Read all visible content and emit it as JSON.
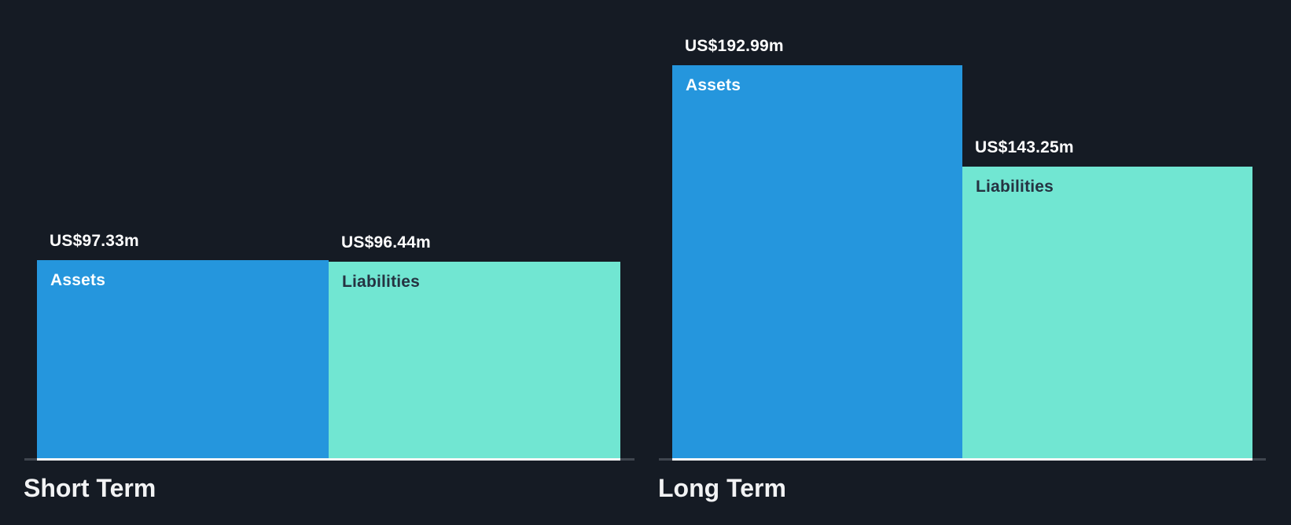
{
  "colors": {
    "background": "#151b24",
    "assets_bar": "#2596dd",
    "liabilities_bar": "#71e6d2",
    "axis_line": "#40464f",
    "bars_underline": "#f7f8f8",
    "value_text": "#ffffff",
    "assets_label_text": "#ffffff",
    "liabilities_label_text": "#253241",
    "group_label_text": "#f2f3f4"
  },
  "chart_data": {
    "type": "bar",
    "title": "",
    "unit": "US$ millions",
    "ylim": [
      0,
      200
    ],
    "grid": false,
    "legend": false,
    "groups": [
      {
        "label": "Short Term",
        "bars": [
          {
            "name": "Assets",
            "value": 97.33,
            "value_label": "US$97.33m"
          },
          {
            "name": "Liabilities",
            "value": 96.44,
            "value_label": "US$96.44m"
          }
        ]
      },
      {
        "label": "Long Term",
        "bars": [
          {
            "name": "Assets",
            "value": 192.99,
            "value_label": "US$192.99m"
          },
          {
            "name": "Liabilities",
            "value": 143.25,
            "value_label": "US$143.25m"
          }
        ]
      }
    ]
  }
}
